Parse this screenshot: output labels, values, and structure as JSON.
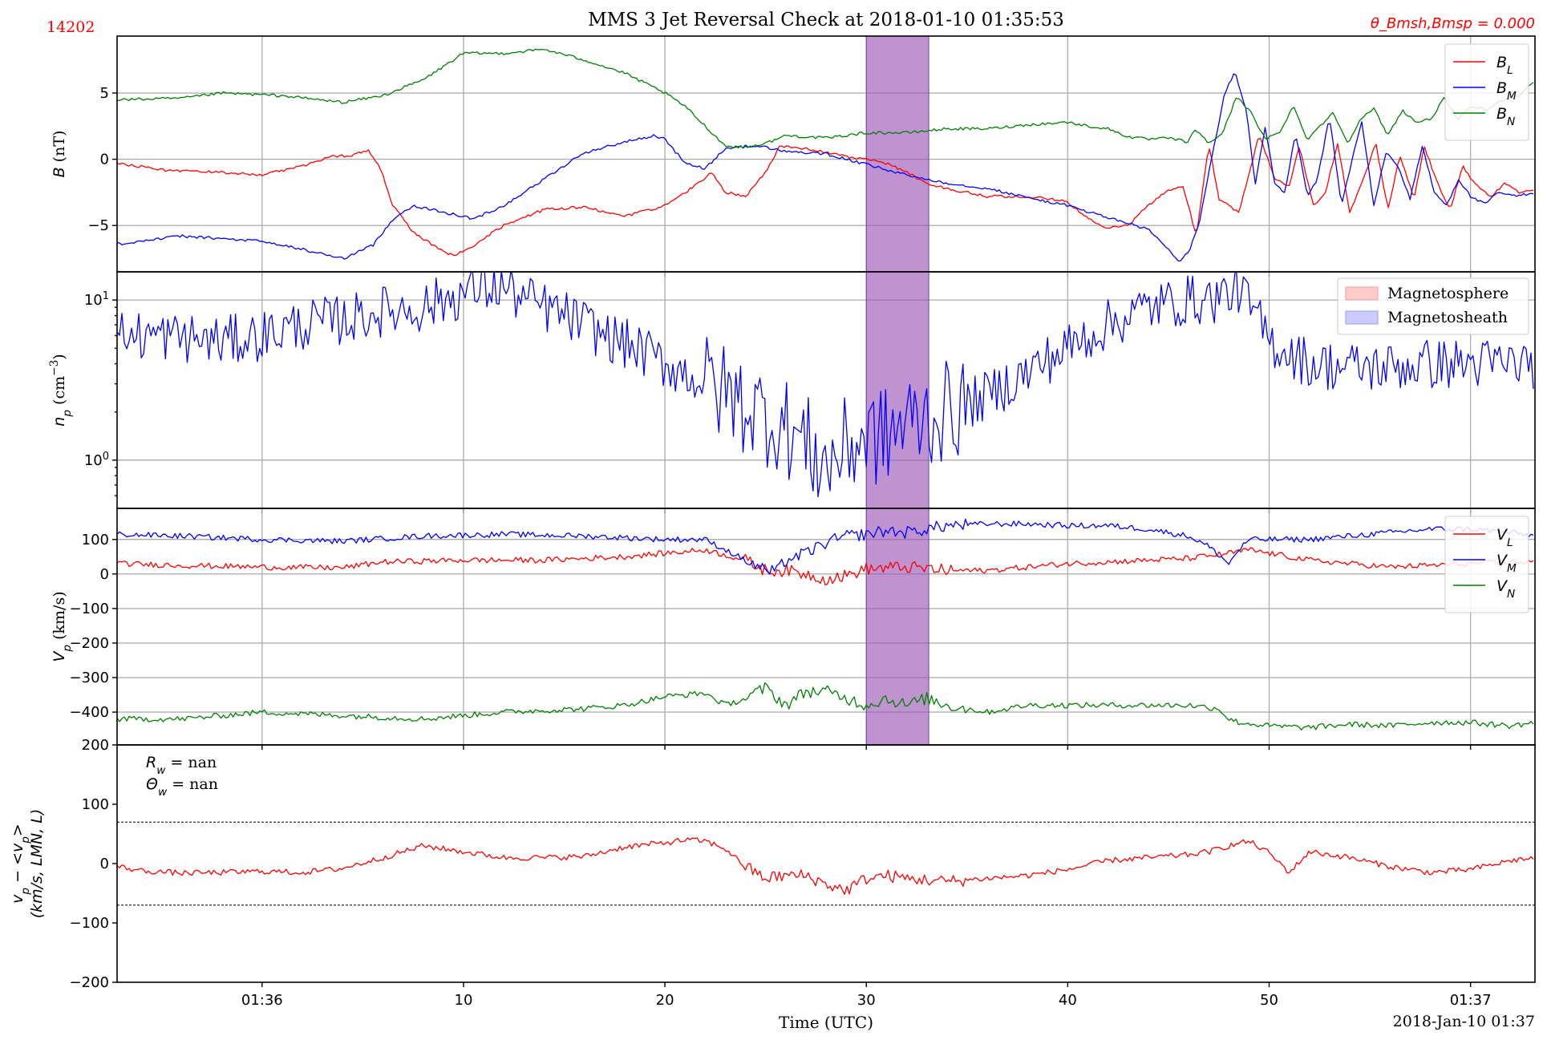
{
  "header": {
    "id_label": "14202",
    "title": "MMS 3 Jet Reversal Check at 2018-01-10 01:35:53",
    "theta_label": "θ_Bmsh,Bmsp = 0.000"
  },
  "colors": {
    "red": "#ff0000",
    "blue": "#0000ff",
    "green": "#008000",
    "highlight": "#9b59b6",
    "grid": "#b0b0b0"
  },
  "footer": {
    "xlabel": "Time (UTC)",
    "date_stamp": "2018-Jan-10 01:37"
  },
  "chart_data": [
    {
      "panel": "B",
      "type": "line",
      "ylabel": "B (nT)",
      "ylim": [
        -8.5,
        9.3
      ],
      "yticks": [
        5,
        0,
        -5
      ],
      "ytick_labels": [
        "5",
        "0",
        "−5"
      ],
      "xlim": [
        52.8,
        123.2
      ],
      "x_unit": "s after 01:35",
      "xticks": [
        60,
        70,
        80,
        90,
        100,
        110,
        120
      ],
      "xtick_labels": [
        "01:36",
        "10",
        "20",
        "30",
        "40",
        "50",
        "01:37"
      ],
      "highlight": [
        90.0,
        93.1
      ],
      "grid": true,
      "legend": "top-right",
      "series": [
        {
          "name": "B_L",
          "color": "#ff0000",
          "x": [
            52.8,
            55,
            58,
            60,
            62,
            63.5,
            64.5,
            65.3,
            65.9,
            66.5,
            67.5,
            68.5,
            69.5,
            70.5,
            72,
            74,
            76,
            78,
            80,
            81.5,
            82.3,
            83,
            84,
            85,
            85.7,
            86.5,
            87.5,
            89,
            90,
            91,
            92,
            93,
            94,
            96,
            98,
            100,
            101,
            102,
            103,
            104,
            104.8,
            105.7,
            106.4,
            107,
            107.5,
            108.5,
            109.5,
            110.3,
            111,
            111.5,
            112.2,
            112.8,
            113.4,
            114,
            114.8,
            115.3,
            115.9,
            116.5,
            117.2,
            117.7,
            118.4,
            119,
            119.6,
            120.3,
            121,
            121.7,
            122.4,
            123.2
          ],
          "y": [
            -0.3,
            -0.8,
            -1.0,
            -1.2,
            -0.5,
            0.2,
            0.3,
            0.7,
            -0.8,
            -3.5,
            -5.5,
            -6.5,
            -7.3,
            -6.5,
            -5.0,
            -3.8,
            -3.6,
            -4.3,
            -3.5,
            -2.0,
            -1.0,
            -2.5,
            -2.8,
            -1.0,
            1.0,
            0.9,
            0.7,
            0.2,
            0.0,
            -0.3,
            -1.0,
            -1.8,
            -2.2,
            -2.8,
            -2.8,
            -3.2,
            -4.5,
            -5.2,
            -5.0,
            -3.5,
            -2.5,
            -2.0,
            -5.8,
            1.2,
            -3.0,
            -4.0,
            1.8,
            -1.5,
            -2.0,
            1.0,
            -3.5,
            -2.5,
            1.2,
            -4.0,
            -1.0,
            1.2,
            -3.8,
            0.3,
            -3.0,
            1.0,
            -2.0,
            -3.8,
            -0.5,
            -2.0,
            -2.8,
            -1.8,
            -2.5,
            -2.3
          ]
        },
        {
          "name": "B_M",
          "color": "#0000ff",
          "x": [
            52.8,
            56,
            60,
            62,
            64,
            65.5,
            66.5,
            67.5,
            69,
            70.5,
            72,
            74,
            76,
            78,
            79.5,
            80,
            81,
            82,
            83,
            84,
            85,
            86,
            88,
            90,
            92,
            94,
            96,
            98,
            100,
            102,
            104,
            105,
            105.5,
            106,
            106.5,
            107.2,
            107.8,
            108.3,
            108.9,
            109.3,
            109.8,
            110.3,
            110.8,
            111.3,
            111.9,
            112.4,
            113,
            113.6,
            114.2,
            114.6,
            115.2,
            115.8,
            116.4,
            117,
            117.6,
            118.2,
            118.8,
            119.4,
            120,
            120.7,
            121.4,
            122.2,
            123.2
          ],
          "y": [
            -6.4,
            -5.8,
            -6.2,
            -6.8,
            -7.5,
            -6.5,
            -4.5,
            -3.5,
            -4.0,
            -4.5,
            -3.5,
            -1.5,
            0.5,
            1.3,
            1.8,
            1.5,
            -0.3,
            -0.7,
            0.8,
            1.0,
            0.9,
            0.6,
            0.4,
            -0.4,
            -1.2,
            -1.8,
            -2.2,
            -2.9,
            -3.5,
            -4.4,
            -5.3,
            -6.8,
            -7.8,
            -7.0,
            -5.0,
            0.5,
            5.0,
            6.6,
            3.5,
            -2.0,
            2.5,
            -2.0,
            -2.5,
            2.0,
            -2.8,
            -1.5,
            3.2,
            -3.5,
            0.5,
            2.8,
            -3.5,
            0.5,
            -0.5,
            -3.0,
            1.0,
            -2.5,
            -3.5,
            -1.5,
            -2.8,
            -3.4,
            -2.5,
            -2.8,
            -2.5
          ]
        },
        {
          "name": "B_N",
          "color": "#008000",
          "x": [
            52.8,
            56,
            58,
            61,
            64,
            66,
            68,
            70,
            72,
            74,
            76,
            78,
            80,
            81,
            82,
            83,
            84,
            85,
            86,
            88,
            90,
            92,
            94,
            96,
            98,
            100,
            101,
            102,
            103,
            104,
            105,
            106,
            106.3,
            107,
            107.7,
            108.4,
            109.1,
            109.8,
            110.5,
            111.2,
            111.9,
            112.5,
            113.2,
            113.9,
            114.5,
            115.2,
            115.9,
            116.6,
            117.3,
            118,
            118.7,
            119.4,
            120.1,
            120.8,
            121.6,
            122.4,
            123.2
          ],
          "y": [
            4.5,
            4.6,
            5.0,
            4.8,
            4.3,
            4.8,
            6.0,
            8.0,
            8.0,
            8.3,
            7.5,
            6.5,
            5.0,
            4.0,
            2.5,
            1.0,
            0.9,
            1.2,
            1.8,
            1.6,
            2.0,
            2.0,
            2.3,
            2.3,
            2.6,
            2.8,
            2.5,
            2.3,
            1.7,
            1.5,
            1.6,
            1.3,
            2.3,
            1.2,
            2.0,
            4.8,
            3.5,
            1.5,
            2.0,
            4.0,
            1.5,
            2.5,
            3.5,
            1.2,
            3.0,
            3.8,
            1.8,
            3.7,
            2.8,
            3.0,
            4.6,
            3.0,
            4.0,
            3.7,
            4.5,
            4.8,
            6.0
          ]
        }
      ]
    },
    {
      "panel": "np",
      "type": "line",
      "ylabel": "n_p (cm^−3)",
      "yscale": "log",
      "ylim": [
        0.5,
        15
      ],
      "yticks": [
        10,
        1
      ],
      "ytick_labels": [
        "10^1",
        "10^0"
      ],
      "xlim": [
        52.8,
        123.2
      ],
      "xticks": [
        60,
        70,
        80,
        90,
        100,
        110,
        120
      ],
      "highlight": [
        90.0,
        93.1
      ],
      "grid": true,
      "legend": "top-right",
      "legend_items": [
        {
          "label": "Magnetosphere",
          "color": "#ff9999"
        },
        {
          "label": "Magnetosheath",
          "color": "#9999ff"
        }
      ],
      "series": [
        {
          "name": "n_p",
          "color": "#0000ff",
          "x": [
            52.8,
            55,
            58,
            60,
            62,
            64,
            66,
            68,
            70,
            71,
            72,
            73,
            75,
            77,
            80,
            82,
            84,
            86,
            88,
            89,
            90,
            91,
            92,
            94,
            96,
            98,
            100,
            102,
            104,
            106,
            107,
            108,
            108.5,
            109,
            110,
            112,
            114,
            116,
            118,
            120,
            122,
            123.2
          ],
          "y": [
            6,
            6,
            5.5,
            6,
            7,
            7.5,
            8.5,
            9,
            11,
            12,
            12,
            10,
            8,
            6,
            4,
            3,
            2.2,
            1.6,
            0.9,
            1.2,
            1.4,
            1.4,
            1.7,
            2,
            2.5,
            3.5,
            5,
            7,
            9,
            10,
            10,
            11,
            12,
            9,
            5.5,
            4,
            3.8,
            3.8,
            4,
            4,
            4,
            4
          ]
        }
      ]
    },
    {
      "panel": "Vp",
      "type": "line",
      "ylabel": "V_p (km/s)",
      "ylim": [
        -495,
        190
      ],
      "yticks": [
        100,
        0,
        -100,
        -200,
        -300,
        -400
      ],
      "ytick_labels": [
        "100",
        "0",
        "−100",
        "−200",
        "−300",
        "−400"
      ],
      "xlim": [
        52.8,
        123.2
      ],
      "xticks": [
        60,
        70,
        80,
        90,
        100,
        110,
        120
      ],
      "highlight": [
        90.0,
        93.1
      ],
      "grid": true,
      "legend": "top-right",
      "series": [
        {
          "name": "V_L",
          "color": "#ff0000",
          "x": [
            52.8,
            56,
            60,
            64,
            66,
            70,
            74,
            78,
            80,
            82,
            84,
            85,
            86,
            87,
            88,
            89,
            90,
            92,
            94,
            96,
            98,
            100,
            102,
            104,
            106,
            108,
            109,
            110,
            112,
            114,
            116,
            118,
            120,
            122,
            123.2
          ],
          "y": [
            30,
            25,
            20,
            18,
            35,
            40,
            40,
            50,
            60,
            70,
            40,
            10,
            10,
            0,
            -15,
            -5,
            15,
            20,
            10,
            10,
            20,
            30,
            35,
            40,
            45,
            60,
            70,
            60,
            40,
            30,
            20,
            25,
            30,
            35,
            35
          ]
        },
        {
          "name": "V_M",
          "color": "#0000ff",
          "x": [
            52.8,
            56,
            60,
            64,
            68,
            72,
            76,
            80,
            82,
            83,
            84,
            85,
            85.5,
            86,
            87,
            88,
            89,
            90,
            91,
            92,
            93,
            94,
            96,
            98,
            100,
            102,
            104,
            106,
            107,
            108,
            108.5,
            109,
            110,
            112,
            114,
            116,
            118,
            120,
            122,
            123.2
          ],
          "y": [
            115,
            110,
            100,
            95,
            110,
            115,
            110,
            100,
            100,
            70,
            40,
            10,
            5,
            40,
            60,
            90,
            110,
            115,
            125,
            120,
            130,
            140,
            145,
            145,
            140,
            140,
            130,
            110,
            80,
            30,
            70,
            100,
            100,
            100,
            110,
            120,
            130,
            130,
            120,
            110
          ]
        },
        {
          "name": "V_N",
          "color": "#008000",
          "x": [
            52.8,
            56,
            60,
            64,
            68,
            72,
            76,
            78,
            80,
            81,
            82,
            83,
            84,
            85,
            86,
            87,
            88,
            89,
            90,
            91,
            92,
            93,
            94,
            96,
            98,
            100,
            102,
            104,
            106,
            107.5,
            108,
            108.5,
            110,
            112,
            114,
            116,
            118,
            120,
            122,
            123.2
          ],
          "y": [
            -420,
            -420,
            -400,
            -410,
            -420,
            -400,
            -390,
            -380,
            -355,
            -350,
            -345,
            -380,
            -360,
            -330,
            -380,
            -340,
            -340,
            -360,
            -380,
            -360,
            -380,
            -360,
            -380,
            -400,
            -380,
            -380,
            -380,
            -380,
            -380,
            -390,
            -420,
            -430,
            -440,
            -445,
            -435,
            -440,
            -430,
            -430,
            -440,
            -430
          ]
        }
      ]
    },
    {
      "panel": "dv",
      "type": "line",
      "ylabel": "v_p − <v_p> (km/s, LMN, L)",
      "ylim": [
        -200,
        200
      ],
      "yticks": [
        200,
        100,
        0,
        -100,
        -200
      ],
      "ytick_labels": [
        "200",
        "100",
        "0",
        "−100",
        "−200"
      ],
      "xlim": [
        52.8,
        123.2
      ],
      "xticks": [
        60,
        70,
        80,
        90,
        100,
        110,
        120
      ],
      "xtick_labels": [
        "01:36",
        "10",
        "20",
        "30",
        "40",
        "50",
        "01:37"
      ],
      "grid": false,
      "annotations": [
        "R_w = nan",
        "Θ_w = nan"
      ],
      "hlines": [
        70,
        -70
      ],
      "series": [
        {
          "name": "",
          "color": "#ff0000",
          "x": [
            52.8,
            54,
            56,
            58,
            60,
            62,
            64,
            66,
            68,
            70,
            72,
            74,
            76,
            78,
            80,
            81,
            82,
            83,
            84,
            85,
            86,
            87,
            88,
            89,
            90,
            91,
            92,
            94,
            96,
            98,
            100,
            102,
            104,
            106,
            107,
            108,
            109,
            110,
            111,
            112,
            114,
            116,
            118,
            120,
            122,
            123.2
          ],
          "y": [
            -5,
            -12,
            -16,
            -15,
            -13,
            -15,
            -8,
            10,
            30,
            20,
            10,
            10,
            12,
            28,
            35,
            40,
            38,
            25,
            -5,
            -25,
            -20,
            -20,
            -35,
            -45,
            -25,
            -20,
            -25,
            -30,
            -25,
            -20,
            -10,
            5,
            10,
            15,
            20,
            30,
            38,
            18,
            -15,
            20,
            10,
            -5,
            -15,
            -10,
            5,
            10
          ]
        }
      ]
    }
  ]
}
